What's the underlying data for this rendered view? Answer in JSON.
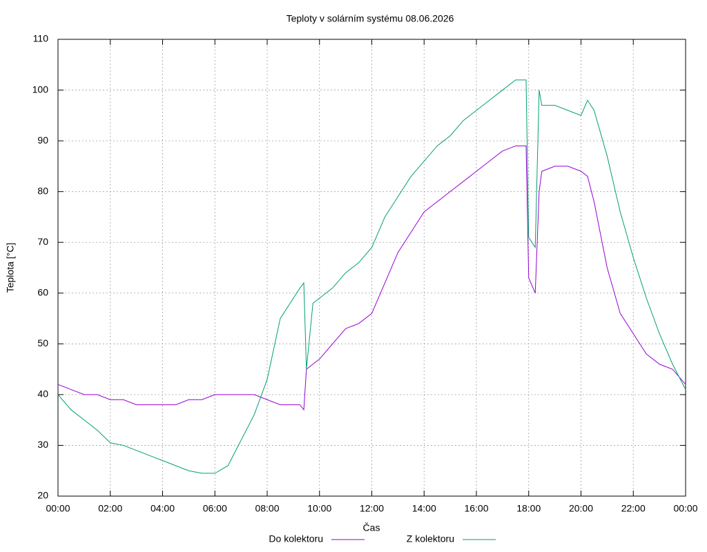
{
  "chart_data": {
    "type": "line",
    "title": "Teploty v solárním systému 08.06.2026",
    "xlabel": "Čas",
    "ylabel": "Teplota [°C]",
    "xlim": [
      0,
      24
    ],
    "ylim": [
      20,
      110
    ],
    "xticks": [
      {
        "value": 0,
        "label": "00:00"
      },
      {
        "value": 2,
        "label": "02:00"
      },
      {
        "value": 4,
        "label": "04:00"
      },
      {
        "value": 6,
        "label": "06:00"
      },
      {
        "value": 8,
        "label": "08:00"
      },
      {
        "value": 10,
        "label": "10:00"
      },
      {
        "value": 12,
        "label": "12:00"
      },
      {
        "value": 14,
        "label": "14:00"
      },
      {
        "value": 16,
        "label": "16:00"
      },
      {
        "value": 18,
        "label": "18:00"
      },
      {
        "value": 20,
        "label": "20:00"
      },
      {
        "value": 22,
        "label": "22:00"
      },
      {
        "value": 24,
        "label": "00:00"
      }
    ],
    "yticks": [
      20,
      30,
      40,
      50,
      60,
      70,
      80,
      90,
      100,
      110
    ],
    "grid": true,
    "legend": "bottom",
    "x": [
      0,
      0.5,
      1,
      1.5,
      2,
      2.5,
      3,
      3.5,
      4,
      4.5,
      5,
      5.5,
      6,
      6.5,
      7,
      7.5,
      8,
      8.5,
      9,
      9.25,
      9.4,
      9.5,
      9.75,
      10,
      10.5,
      11,
      11.5,
      12,
      12.5,
      13,
      13.5,
      14,
      14.5,
      15,
      15.5,
      16,
      16.5,
      17,
      17.5,
      17.9,
      18,
      18.25,
      18.4,
      18.5,
      19,
      19.5,
      20,
      20.25,
      20.5,
      21,
      21.5,
      22,
      22.5,
      23,
      23.5,
      24
    ],
    "series": [
      {
        "name": "Do kolektoru",
        "color": "#9400d3",
        "values": [
          42,
          41,
          40,
          40,
          39,
          39,
          38,
          38,
          38,
          38,
          39,
          39,
          40,
          40,
          40,
          40,
          39,
          38,
          38,
          38,
          37,
          45,
          46,
          47,
          50,
          53,
          54,
          56,
          62,
          68,
          72,
          76,
          78,
          80,
          82,
          84,
          86,
          88,
          89,
          89,
          63,
          60,
          80,
          84,
          85,
          85,
          84,
          83,
          78,
          65,
          56,
          52,
          48,
          46,
          45,
          42
        ]
      },
      {
        "name": "Z kolektoru",
        "color": "#009e73",
        "values": [
          40,
          37,
          35,
          33,
          30.5,
          30,
          29,
          28,
          27,
          26,
          25,
          24.5,
          24.5,
          26,
          31,
          36,
          43,
          55,
          59,
          61,
          62,
          45,
          58,
          59,
          61,
          64,
          66,
          69,
          75,
          79,
          83,
          86,
          89,
          91,
          94,
          96,
          98,
          100,
          102,
          102,
          71,
          69,
          100,
          97,
          97,
          96,
          95,
          98,
          96,
          87,
          76,
          67,
          59,
          52,
          46,
          41
        ]
      }
    ]
  }
}
